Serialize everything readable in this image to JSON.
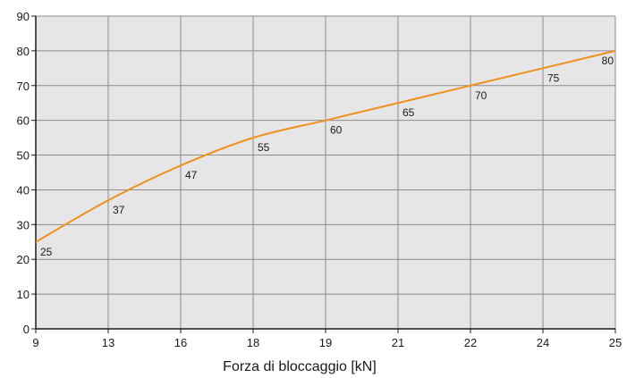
{
  "chart_data": {
    "type": "line",
    "title": "",
    "xlabel": "Forza di bloccaggio [kN]",
    "ylabel": "",
    "categories": [
      "9",
      "13",
      "16",
      "18",
      "19",
      "21",
      "22",
      "24",
      "25"
    ],
    "series": [
      {
        "values": [
          25,
          37,
          47,
          55,
          60,
          65,
          70,
          75,
          80
        ]
      }
    ],
    "data_labels": [
      "25",
      "37",
      "47",
      "55",
      "60",
      "65",
      "70",
      "75",
      "80"
    ],
    "yticks": [
      0,
      10,
      20,
      30,
      40,
      50,
      60,
      70,
      80,
      90
    ],
    "ylim": [
      0,
      90
    ],
    "grid": true,
    "legend": "none",
    "colors": {
      "line": "#f0901e",
      "plot_background": "#e6e6e6",
      "grid": "#8c8c8c",
      "axis": "#1a1a1a"
    }
  }
}
